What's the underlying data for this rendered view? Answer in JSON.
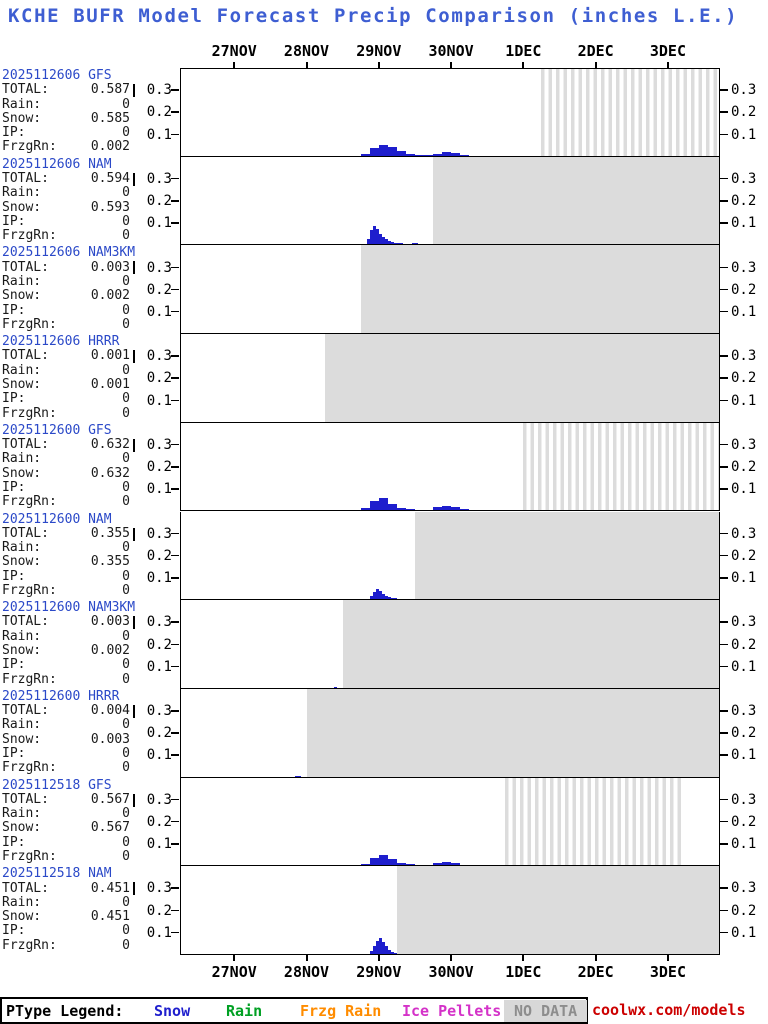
{
  "legend": {
    "label": "PType Legend:",
    "items": [
      {
        "name": "snow",
        "label": "Snow",
        "color": "#1e1ecd"
      },
      {
        "name": "rain",
        "label": "Rain",
        "color": "#00a023"
      },
      {
        "name": "frzg-rain",
        "label": "Frzg Rain",
        "color": "#ff8c00"
      },
      {
        "name": "ice-pellets",
        "label": "Ice Pellets",
        "color": "#d432c8"
      },
      {
        "name": "no-data",
        "label": "NO DATA",
        "color": "#8d8d8d",
        "bg": "#d8d8d8"
      }
    ],
    "site": "coolwx.com/models",
    "site_color": "#cc0000"
  },
  "chart_data": {
    "type": "bar",
    "title": "KCHE BUFR Model Forecast Precip Comparison (inches L.E.)",
    "colors": {
      "title": "#3e5ed2",
      "run_label": "#2b49c8",
      "bar_snow": "#1e1ecd",
      "no_data": "#dcdcdc"
    },
    "x_axis": {
      "tick_labels": [
        "27NOV",
        "28NOV",
        "29NOV",
        "30NOV",
        "1DEC",
        "2DEC",
        "3DEC"
      ],
      "tick_days": [
        0,
        1,
        2,
        3,
        4,
        5,
        6
      ],
      "domain_days": [
        -0.75,
        6.72
      ],
      "note": "days relative to 27NOV 00Z"
    },
    "y_axis": {
      "ticks": [
        0.3,
        0.2,
        0.1
      ],
      "max": 0.4,
      "unit": "inches liquid equivalent"
    },
    "panels": [
      {
        "run": "2025112606 GFS",
        "stats": [
          [
            "TOTAL:",
            "0.587"
          ],
          [
            "Rain:",
            "0"
          ],
          [
            "Snow:",
            "0.585"
          ],
          [
            "IP:",
            "0"
          ],
          [
            "FrzgRn:",
            "0.002"
          ]
        ],
        "bars": {
          "type": "snow",
          "start_day": 1.75,
          "step_day": 0.125,
          "values": [
            0.008,
            0.035,
            0.048,
            0.04,
            0.022,
            0.01,
            0.005,
            0.003,
            0.008,
            0.016,
            0.012,
            0.004
          ]
        },
        "no_data_start_day": null,
        "hatch_day_range": [
          4.25,
          null
        ]
      },
      {
        "run": "2025112606 NAM",
        "stats": [
          [
            "TOTAL:",
            "0.594"
          ],
          [
            "Rain:",
            "0"
          ],
          [
            "Snow:",
            "0.593"
          ],
          [
            "IP:",
            "0"
          ],
          [
            "FrzgRn:",
            "0"
          ]
        ],
        "bars": {
          "type": "snow",
          "start_day": 1.833,
          "step_day": 0.04167,
          "values": [
            0.025,
            0.065,
            0.085,
            0.07,
            0.048,
            0.034,
            0.024,
            0.016,
            0.011,
            0.008,
            0.006,
            0.005,
            0.004,
            0.003,
            0.004,
            0.008,
            0.006,
            0.003
          ]
        },
        "no_data_start_day": 2.75,
        "hatch_day_range": null
      },
      {
        "run": "2025112606 NAM3KM",
        "stats": [
          [
            "TOTAL:",
            "0.003"
          ],
          [
            "Rain:",
            "0"
          ],
          [
            "Snow:",
            "0.002"
          ],
          [
            "IP:",
            "0"
          ],
          [
            "FrzgRn:",
            "0"
          ]
        ],
        "bars": {
          "type": "snow",
          "start_day": 1.583,
          "step_day": 0.04167,
          "values": [
            0.001,
            0.002
          ]
        },
        "no_data_start_day": 1.75,
        "hatch_day_range": null
      },
      {
        "run": "2025112606 HRRR",
        "stats": [
          [
            "TOTAL:",
            "0.001"
          ],
          [
            "Rain:",
            "0"
          ],
          [
            "Snow:",
            "0.001"
          ],
          [
            "IP:",
            "0"
          ],
          [
            "FrzgRn:",
            "0"
          ]
        ],
        "bars": {
          "type": "snow",
          "start_day": 1.083,
          "step_day": 0.04167,
          "values": [
            0.001
          ]
        },
        "no_data_start_day": 1.25,
        "hatch_day_range": null
      },
      {
        "run": "2025112600 GFS",
        "stats": [
          [
            "TOTAL:",
            "0.632"
          ],
          [
            "Rain:",
            "0"
          ],
          [
            "Snow:",
            "0.632"
          ],
          [
            "IP:",
            "0"
          ],
          [
            "FrzgRn:",
            "0"
          ]
        ],
        "bars": {
          "type": "snow",
          "start_day": 1.75,
          "step_day": 0.125,
          "values": [
            0.01,
            0.045,
            0.055,
            0.03,
            0.012,
            0.005,
            0.002,
            0.002,
            0.014,
            0.022,
            0.016,
            0.006
          ]
        },
        "no_data_start_day": null,
        "hatch_day_range": [
          4.0,
          null
        ]
      },
      {
        "run": "2025112600 NAM",
        "stats": [
          [
            "TOTAL:",
            "0.355"
          ],
          [
            "Rain:",
            "0"
          ],
          [
            "Snow:",
            "0.355"
          ],
          [
            "IP:",
            "0"
          ],
          [
            "FrzgRn:",
            "0"
          ]
        ],
        "bars": {
          "type": "snow",
          "start_day": 1.875,
          "step_day": 0.04167,
          "values": [
            0.015,
            0.035,
            0.046,
            0.038,
            0.026,
            0.016,
            0.01,
            0.006,
            0.004,
            0.002
          ]
        },
        "no_data_start_day": 2.5,
        "hatch_day_range": null
      },
      {
        "run": "2025112600 NAM3KM",
        "stats": [
          [
            "TOTAL:",
            "0.003"
          ],
          [
            "Rain:",
            "0"
          ],
          [
            "Snow:",
            "0.002"
          ],
          [
            "IP:",
            "0"
          ],
          [
            "FrzgRn:",
            "0"
          ]
        ],
        "bars": {
          "type": "snow",
          "start_day": 1.333,
          "step_day": 0.04167,
          "values": [
            0.001,
            0.002
          ]
        },
        "no_data_start_day": 1.5,
        "hatch_day_range": null
      },
      {
        "run": "2025112600 HRRR",
        "stats": [
          [
            "TOTAL:",
            "0.004"
          ],
          [
            "Rain:",
            "0"
          ],
          [
            "Snow:",
            "0.003"
          ],
          [
            "IP:",
            "0"
          ],
          [
            "FrzgRn:",
            "0"
          ]
        ],
        "bars": {
          "type": "snow",
          "start_day": 0.833,
          "step_day": 0.04167,
          "values": [
            0.002,
            0.002
          ]
        },
        "no_data_start_day": 1.0,
        "hatch_day_range": null
      },
      {
        "run": "2025112518 GFS",
        "stats": [
          [
            "TOTAL:",
            "0.567"
          ],
          [
            "Rain:",
            "0"
          ],
          [
            "Snow:",
            "0.567"
          ],
          [
            "IP:",
            "0"
          ],
          [
            "FrzgRn:",
            "0"
          ]
        ],
        "bars": {
          "type": "snow",
          "start_day": 1.75,
          "step_day": 0.125,
          "values": [
            0.008,
            0.032,
            0.045,
            0.028,
            0.01,
            0.004,
            0.002,
            0.003,
            0.01,
            0.015,
            0.009,
            0.003
          ]
        },
        "no_data_start_day": null,
        "hatch_day_range": [
          3.75,
          6.25
        ]
      },
      {
        "run": "2025112518 NAM",
        "stats": [
          [
            "TOTAL:",
            "0.451"
          ],
          [
            "Rain:",
            "0"
          ],
          [
            "Snow:",
            "0.451"
          ],
          [
            "IP:",
            "0"
          ],
          [
            "FrzgRn:",
            "0"
          ]
        ],
        "bars": {
          "type": "snow",
          "start_day": 1.875,
          "step_day": 0.04167,
          "values": [
            0.012,
            0.035,
            0.06,
            0.072,
            0.055,
            0.035,
            0.018,
            0.008,
            0.003
          ]
        },
        "no_data_start_day": 2.25,
        "hatch_day_range": null
      }
    ]
  }
}
